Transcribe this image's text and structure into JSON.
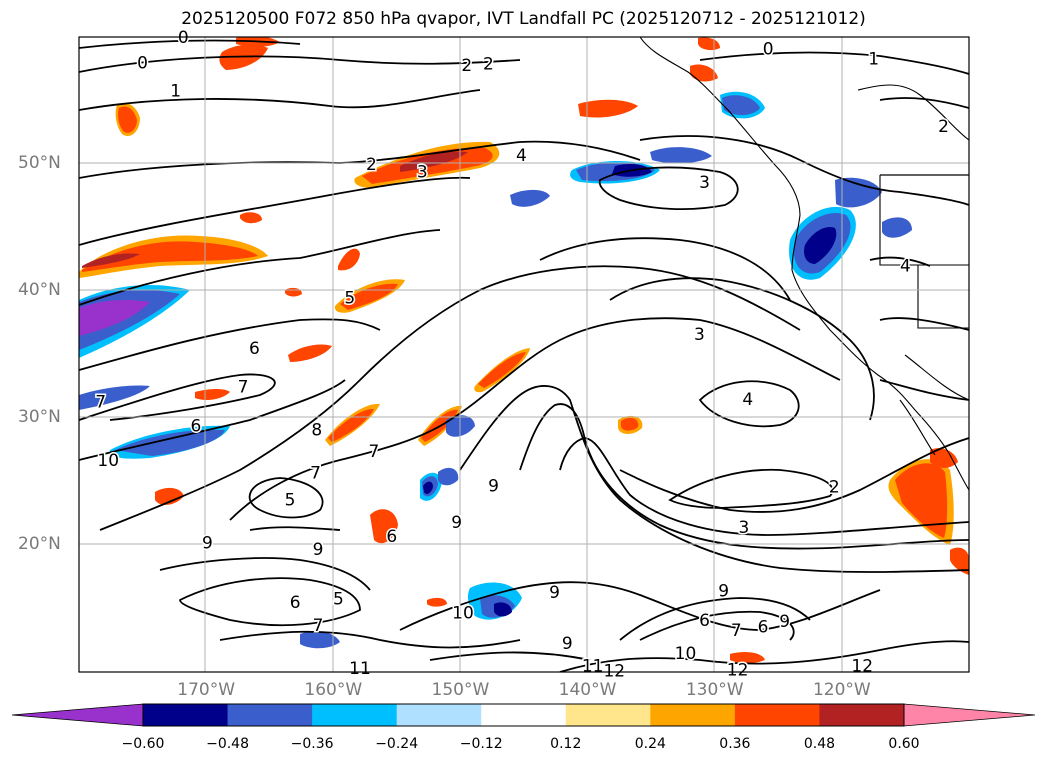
{
  "title": "2025120500 F072 850 hPa qvapor, IVT Landfall PC (2025120712 - 2025121012)",
  "lat_labels": [
    {
      "text": "50°N",
      "lat": 50
    },
    {
      "text": "40°N",
      "lat": 40
    },
    {
      "text": "30°N",
      "lat": 30
    },
    {
      "text": "20°N",
      "lat": 20
    }
  ],
  "lon_labels": [
    {
      "text": "170°W",
      "lon": -170
    },
    {
      "text": "160°W",
      "lon": -160
    },
    {
      "text": "150°W",
      "lon": -150
    },
    {
      "text": "140°W",
      "lon": -140
    },
    {
      "text": "130°W",
      "lon": -130
    },
    {
      "text": "120°W",
      "lon": -120
    }
  ],
  "colorbar": {
    "ticks": [
      "−0.60",
      "−0.48",
      "−0.36",
      "−0.24",
      "−0.12",
      "0.12",
      "0.24",
      "0.36",
      "0.48",
      "0.60"
    ],
    "colors": [
      "#9932cc",
      "#00008b",
      "#3a5fcd",
      "#00bfff",
      "#b0e0ff",
      "#ffffff",
      "#ffe68c",
      "#ffa500",
      "#ff4500",
      "#b22222",
      "#ff85a8"
    ]
  },
  "contour_labels": [
    {
      "text": "0",
      "lon": -171.8,
      "lat": 60.0
    },
    {
      "text": "0",
      "lon": -175.0,
      "lat": 58.0
    },
    {
      "text": "1",
      "lon": -172.4,
      "lat": 55.8
    },
    {
      "text": "0",
      "lon": -125.8,
      "lat": 59.1
    },
    {
      "text": "1",
      "lon": -117.5,
      "lat": 58.3
    },
    {
      "text": "2",
      "lon": -149.5,
      "lat": 57.8
    },
    {
      "text": "2",
      "lon": -147.8,
      "lat": 57.9
    },
    {
      "text": "2",
      "lon": -112.0,
      "lat": 53.0
    },
    {
      "text": "2",
      "lon": -157.0,
      "lat": 50.0
    },
    {
      "text": "3",
      "lon": -153.0,
      "lat": 49.4
    },
    {
      "text": "4",
      "lon": -145.2,
      "lat": 50.7
    },
    {
      "text": "3",
      "lon": -130.8,
      "lat": 48.6
    },
    {
      "text": "4",
      "lon": -115.0,
      "lat": 42.0
    },
    {
      "text": "5",
      "lon": -158.7,
      "lat": 39.5
    },
    {
      "text": "3",
      "lon": -131.2,
      "lat": 36.6
    },
    {
      "text": "6",
      "lon": -166.2,
      "lat": 35.5
    },
    {
      "text": "7",
      "lon": -167.1,
      "lat": 32.5
    },
    {
      "text": "7",
      "lon": -178.3,
      "lat": 31.3
    },
    {
      "text": "4",
      "lon": -127.4,
      "lat": 31.5
    },
    {
      "text": "8",
      "lon": -161.3,
      "lat": 29.1
    },
    {
      "text": "6",
      "lon": -170.8,
      "lat": 29.4
    },
    {
      "text": "7",
      "lon": -156.8,
      "lat": 27.4
    },
    {
      "text": "10",
      "lon": -177.7,
      "lat": 26.7
    },
    {
      "text": "7",
      "lon": -161.4,
      "lat": 25.7
    },
    {
      "text": "2",
      "lon": -120.6,
      "lat": 24.6
    },
    {
      "text": "5",
      "lon": -163.4,
      "lat": 23.6
    },
    {
      "text": "3",
      "lon": -127.7,
      "lat": 21.4
    },
    {
      "text": "9",
      "lon": -169.9,
      "lat": 20.2
    },
    {
      "text": "9",
      "lon": -161.2,
      "lat": 19.7
    },
    {
      "text": "6",
      "lon": -155.4,
      "lat": 20.7
    },
    {
      "text": "9",
      "lon": -150.3,
      "lat": 21.8
    },
    {
      "text": "9",
      "lon": -147.4,
      "lat": 24.7
    },
    {
      "text": "9",
      "lon": -142.6,
      "lat": 16.3
    },
    {
      "text": "9",
      "lon": -129.3,
      "lat": 16.4
    },
    {
      "text": "6",
      "lon": -163.0,
      "lat": 15.5
    },
    {
      "text": "5",
      "lon": -159.6,
      "lat": 15.8
    },
    {
      "text": "7",
      "lon": -161.2,
      "lat": 13.7
    },
    {
      "text": "10",
      "lon": -149.8,
      "lat": 14.7
    },
    {
      "text": "6",
      "lon": -130.8,
      "lat": 14.1
    },
    {
      "text": "7",
      "lon": -128.3,
      "lat": 13.3
    },
    {
      "text": "6",
      "lon": -126.2,
      "lat": 13.6
    },
    {
      "text": "9",
      "lon": -124.5,
      "lat": 14.0
    },
    {
      "text": "9",
      "lon": -141.6,
      "lat": 12.3
    },
    {
      "text": "10",
      "lon": -132.3,
      "lat": 11.5
    },
    {
      "text": "11",
      "lon": -157.9,
      "lat": 10.3
    },
    {
      "text": "11",
      "lon": -139.6,
      "lat": 10.5
    },
    {
      "text": "12",
      "lon": -137.9,
      "lat": 10.1
    },
    {
      "text": "12",
      "lon": -128.2,
      "lat": 10.2
    },
    {
      "text": "12",
      "lon": -118.4,
      "lat": 10.5
    }
  ]
}
